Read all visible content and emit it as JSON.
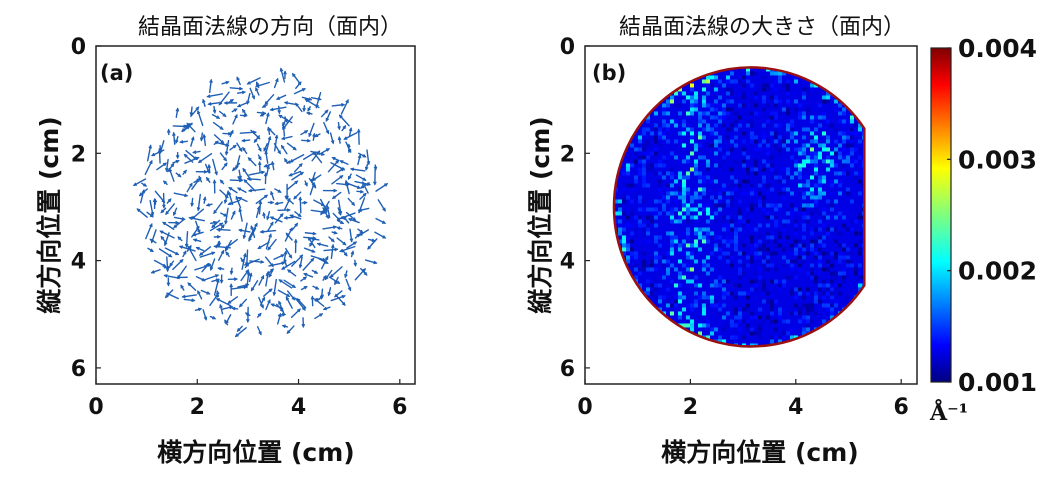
{
  "chart_data": [
    {
      "type": "quiver",
      "panel_label": "(a)",
      "title": "結晶面法線の方向（面内）",
      "xlabel": "横方向位置 (cm)",
      "ylabel": "縦方向位置 (cm)",
      "xlim": [
        0,
        6.3
      ],
      "ylim": [
        6.3,
        0
      ],
      "y_axis_inverted": true,
      "xticks": [
        0,
        2,
        4,
        6
      ],
      "xtick_labels": [
        "0",
        "2",
        "4",
        "6"
      ],
      "yticks": [
        0,
        2,
        4,
        6
      ],
      "ytick_labels": [
        "0",
        "2",
        "4",
        "6"
      ],
      "region": {
        "shape": "circle",
        "center": [
          3.25,
          2.95
        ],
        "radius": 2.4
      },
      "vector_color": "#1f5fb4",
      "typical_vector_length_cm": 0.25,
      "grid": false
    },
    {
      "type": "heatmap",
      "panel_label": "(b)",
      "title": "結晶面法線の大きさ（面内）",
      "xlabel": "横方向位置 (cm)",
      "ylabel": "縦方向位置 (cm)",
      "xlim": [
        0,
        6.3
      ],
      "ylim": [
        6.3,
        0
      ],
      "y_axis_inverted": true,
      "xticks": [
        0,
        2,
        4,
        6
      ],
      "xtick_labels": [
        "0",
        "2",
        "4",
        "6"
      ],
      "yticks": [
        0,
        2,
        4,
        6
      ],
      "ytick_labels": [
        "0",
        "2",
        "4",
        "6"
      ],
      "region": {
        "shape": "circle-with-flat",
        "center": [
          3.15,
          3.0
        ],
        "radius": 2.6,
        "flat_x": 5.3
      },
      "colorbar": {
        "min": 0.001,
        "max": 0.004,
        "ticks": [
          0.001,
          0.002,
          0.003,
          0.004
        ],
        "tick_labels": [
          "0.001",
          "0.002",
          "0.003",
          "0.004"
        ],
        "unit": "Å⁻¹",
        "colormap": "jet"
      },
      "typical_value": 0.0013,
      "grid": false
    }
  ]
}
